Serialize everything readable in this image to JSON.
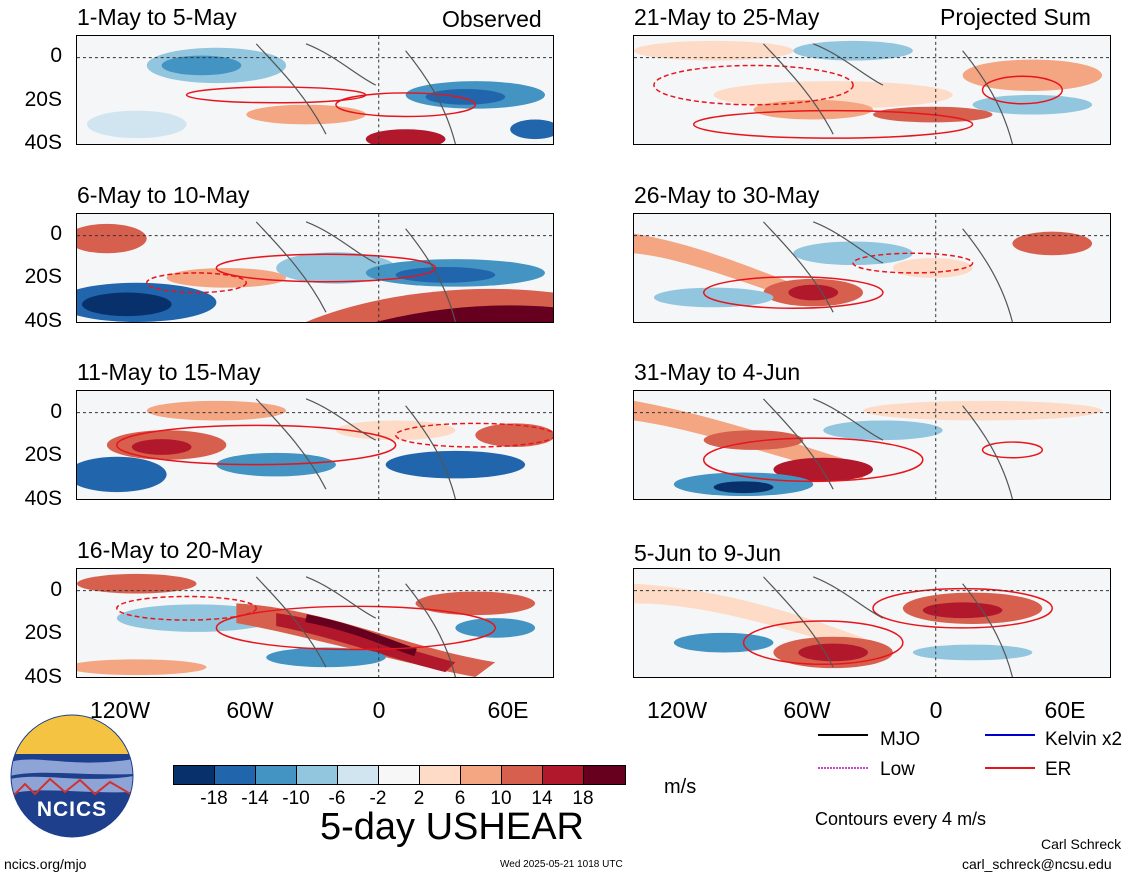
{
  "chart_data": {
    "type": "heatmap",
    "title": "5-day USHEAR",
    "units": "m/s",
    "contour_note": "Contours every 4 m/s",
    "column_labels": [
      "Observed",
      "Projected Sum"
    ],
    "panels": [
      {
        "title": "1-May to 5-May",
        "column": "Observed"
      },
      {
        "title": "6-May to 10-May",
        "column": "Observed"
      },
      {
        "title": "11-May to 15-May",
        "column": "Observed"
      },
      {
        "title": "16-May to 20-May",
        "column": "Observed"
      },
      {
        "title": "21-May to 25-May",
        "column": "Projected Sum"
      },
      {
        "title": "26-May to 30-May",
        "column": "Projected Sum"
      },
      {
        "title": "31-May to 4-Jun",
        "column": "Projected Sum"
      },
      {
        "title": "5-Jun to 9-Jun",
        "column": "Projected Sum"
      }
    ],
    "y_ticks": [
      "0",
      "20S",
      "40S"
    ],
    "x_ticks": [
      "120W",
      "60W",
      "0",
      "60E"
    ],
    "colorbar": {
      "labels": [
        "-18",
        "-14",
        "-10",
        "-6",
        "-2",
        "2",
        "6",
        "10",
        "14",
        "18"
      ],
      "colors": [
        "#08306b",
        "#2166ac",
        "#4393c3",
        "#92c5de",
        "#d1e5f0",
        "#f7f7f7",
        "#fddbc7",
        "#f4a582",
        "#d6604d",
        "#b2182b",
        "#67001f"
      ]
    },
    "legend": [
      {
        "label": "MJO",
        "color": "#000000",
        "style": "solid"
      },
      {
        "label": "Kelvin x2",
        "color": "#0000cc",
        "style": "solid"
      },
      {
        "label": "Low",
        "color": "#cc44cc",
        "style": "dotted"
      },
      {
        "label": "ER",
        "color": "#e8141b",
        "style": "solid"
      }
    ]
  },
  "footer": {
    "logo_text": "NCICS",
    "site": "ncics.org/mjo",
    "timestamp": "Wed 2025-05-21 1018 UTC",
    "author": "Carl Schreck",
    "email": "carl_schreck@ncsu.edu"
  }
}
